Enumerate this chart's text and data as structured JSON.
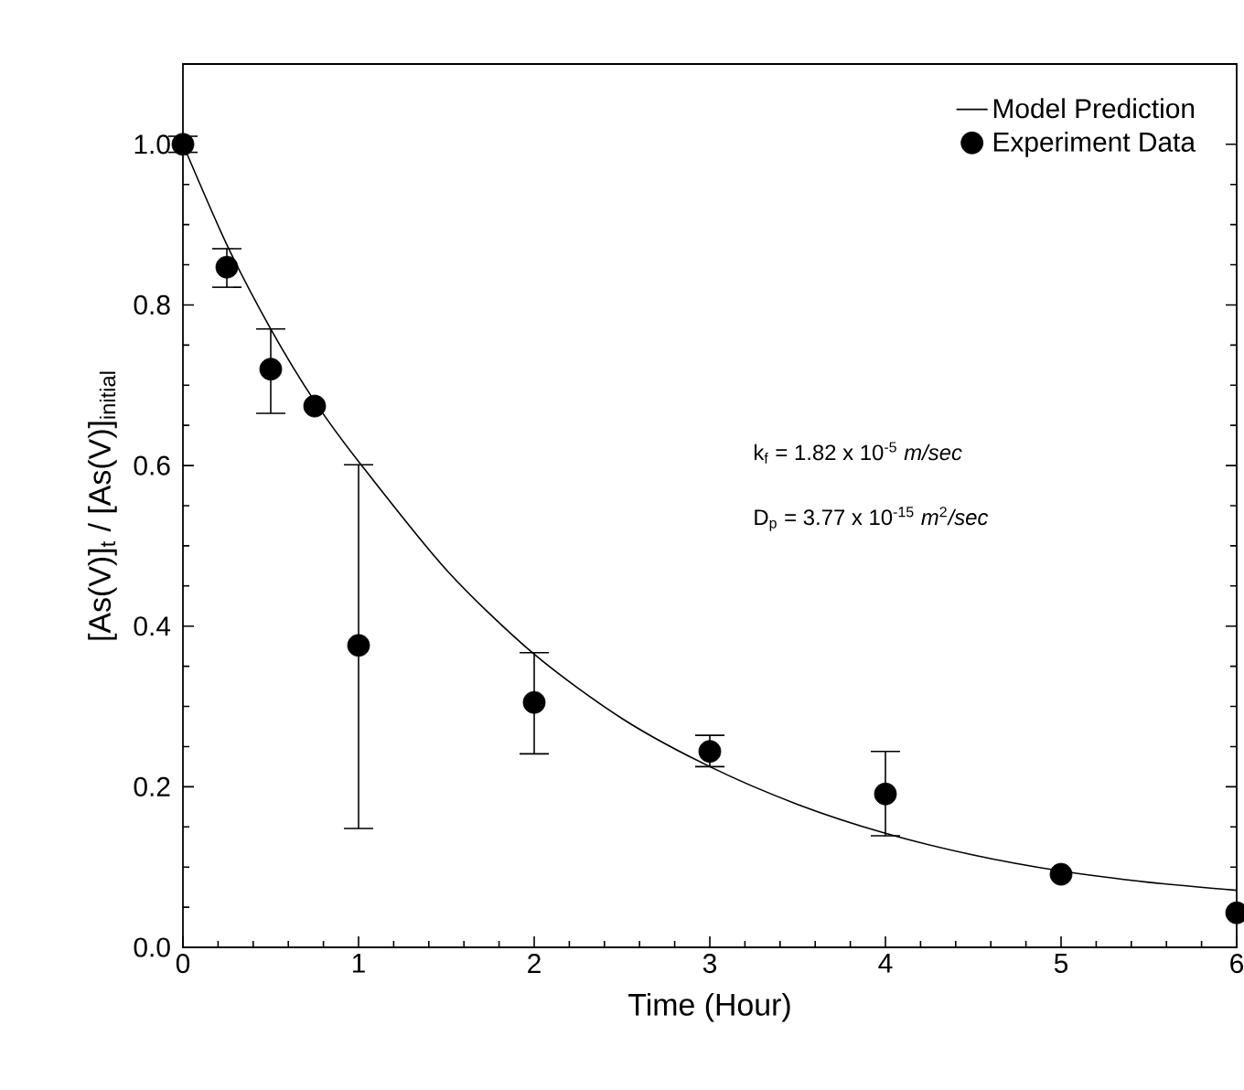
{
  "chart_data": {
    "type": "scatter",
    "xlabel": "Time (Hour)",
    "ylabel": "[As(V)]$_{t}$ / [As(V)]$_{initial}$",
    "xlim": [
      0,
      6
    ],
    "ylim": [
      0,
      1.1
    ],
    "xticks": [
      0,
      1,
      2,
      3,
      4,
      5,
      6
    ],
    "yticks": [
      {
        "value": 0,
        "label": "0.0"
      },
      0.2,
      0.4,
      0.6,
      0.8,
      {
        "value": 1,
        "label": "1.0"
      }
    ],
    "legend": "top right",
    "grid": false,
    "annotations": [
      "k$_{f}$ = 1.82 x 10$^{-5}$  *m/sec*",
      "D$_{p}$ = 3.77 x 10$^{-15}$ *m*$^{2}$*/sec*"
    ],
    "series": [
      {
        "name": "Model Prediction",
        "type": "line",
        "color": "#000000",
        "marker": "none",
        "x": [
          0,
          0.25,
          0.5,
          0.75,
          1,
          1.5,
          2,
          2.5,
          3,
          3.5,
          4,
          4.5,
          5,
          5.5,
          6
        ],
        "values": [
          1.0,
          0.875,
          0.77,
          0.68,
          0.605,
          0.47,
          0.365,
          0.285,
          0.225,
          0.178,
          0.142,
          0.115,
          0.095,
          0.081,
          0.071
        ]
      },
      {
        "name": "Experiment Data",
        "marker": "circle",
        "color": "#000000",
        "x": [
          0,
          0.25,
          0.5,
          0.75,
          1,
          2,
          3,
          4,
          5,
          6
        ],
        "values": [
          1.0,
          0.847,
          0.72,
          0.674,
          0.376,
          0.305,
          0.244,
          0.191,
          0.091,
          0.043
        ],
        "errors": [
          [
            0.99,
            1.01
          ],
          [
            0.822,
            0.87
          ],
          [
            0.665,
            0.77
          ],
          null,
          [
            0.148,
            0.601
          ],
          [
            0.241,
            0.367
          ],
          [
            0.225,
            0.264
          ],
          [
            0.139,
            0.244
          ],
          null,
          null
        ]
      }
    ]
  }
}
